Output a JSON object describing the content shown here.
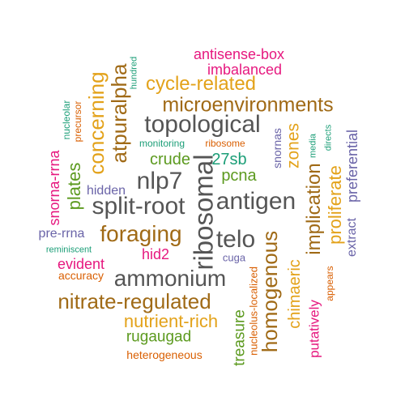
{
  "colors": {
    "pink": "#e6187f",
    "orange": "#e3a21a",
    "brown": "#a06a16",
    "gray": "#555555",
    "green": "#5c9a1f",
    "purple": "#6a64a8",
    "teal": "#1b9e77",
    "red_orange": "#d95f02"
  },
  "words": [
    {
      "text": "antisense-box",
      "color": "pink"
    },
    {
      "text": "imbalanced",
      "color": "pink"
    },
    {
      "text": "hundred",
      "color": "teal"
    },
    {
      "text": "cycle-related",
      "color": "orange"
    },
    {
      "text": "atpuralpha",
      "color": "brown"
    },
    {
      "text": "concerning",
      "color": "orange"
    },
    {
      "text": "microenvironments",
      "color": "brown"
    },
    {
      "text": "nucleolar",
      "color": "teal"
    },
    {
      "text": "precursor",
      "color": "red_orange"
    },
    {
      "text": "topological",
      "color": "gray"
    },
    {
      "text": "monitoring",
      "color": "teal"
    },
    {
      "text": "ribosome",
      "color": "red_orange"
    },
    {
      "text": "snornas",
      "color": "purple"
    },
    {
      "text": "zones",
      "color": "orange"
    },
    {
      "text": "media",
      "color": "teal"
    },
    {
      "text": "directs",
      "color": "teal"
    },
    {
      "text": "snorna-rrna",
      "color": "pink"
    },
    {
      "text": "plates",
      "color": "green"
    },
    {
      "text": "crude",
      "color": "green"
    },
    {
      "text": "27sb",
      "color": "teal"
    },
    {
      "text": "preferential",
      "color": "purple"
    },
    {
      "text": "nlp7",
      "color": "gray"
    },
    {
      "text": "pcna",
      "color": "green"
    },
    {
      "text": "implication",
      "color": "brown"
    },
    {
      "text": "ribosomal",
      "color": "gray"
    },
    {
      "text": "hidden",
      "color": "purple"
    },
    {
      "text": "split-root",
      "color": "gray"
    },
    {
      "text": "antigen",
      "color": "gray"
    },
    {
      "text": "proliferate",
      "color": "orange"
    },
    {
      "text": "pre-rrna",
      "color": "purple"
    },
    {
      "text": "foraging",
      "color": "brown"
    },
    {
      "text": "telo",
      "color": "gray"
    },
    {
      "text": "extract",
      "color": "purple"
    },
    {
      "text": "homogenous",
      "color": "brown"
    },
    {
      "text": "reminiscent",
      "color": "teal"
    },
    {
      "text": "hid2",
      "color": "pink"
    },
    {
      "text": "cuga",
      "color": "purple"
    },
    {
      "text": "evident",
      "color": "pink"
    },
    {
      "text": "accuracy",
      "color": "red_orange"
    },
    {
      "text": "ammonium",
      "color": "gray"
    },
    {
      "text": "chimaeric",
      "color": "orange"
    },
    {
      "text": "appears",
      "color": "red_orange"
    },
    {
      "text": "nucleolus-localized",
      "color": "red_orange"
    },
    {
      "text": "nitrate-regulated",
      "color": "brown"
    },
    {
      "text": "putatively",
      "color": "pink"
    },
    {
      "text": "nutrient-rich",
      "color": "orange"
    },
    {
      "text": "treasure",
      "color": "green"
    },
    {
      "text": "rugaugad",
      "color": "green"
    },
    {
      "text": "heterogeneous",
      "color": "red_orange"
    }
  ]
}
